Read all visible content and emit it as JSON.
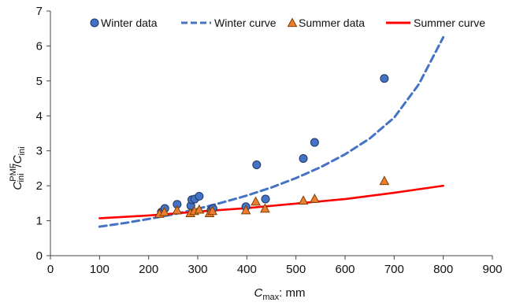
{
  "chart_data": {
    "type": "scatter",
    "title": "",
    "xlabel": {
      "main": "C",
      "sub": "max",
      "suffix": ": mm"
    },
    "ylabel": {
      "numerator_main": "C",
      "numerator_sup": "PMF",
      "numerator_sub": "ini",
      "slash": "/",
      "denominator_main": "C",
      "denominator_sub": "ini"
    },
    "xlim": [
      0,
      900
    ],
    "ylim": [
      0,
      7
    ],
    "xticks": [
      0,
      100,
      200,
      300,
      400,
      500,
      600,
      700,
      800,
      900
    ],
    "yticks": [
      0,
      1,
      2,
      3,
      4,
      5,
      6,
      7
    ],
    "grid": false,
    "legend_position": "top",
    "legend": [
      {
        "label": "Winter data",
        "kind": "marker-circle",
        "color": "#4472C4"
      },
      {
        "label": "Winter curve",
        "kind": "line-dashed",
        "color": "#4472C4"
      },
      {
        "label": "Summer data",
        "kind": "marker-triangle",
        "color": "#ED7D31"
      },
      {
        "label": "Summer curve",
        "kind": "line-solid",
        "color": "#FF0000"
      }
    ],
    "series": [
      {
        "name": "Winter data",
        "kind": "scatter",
        "marker": "circle",
        "color": "#4472C4",
        "points": [
          {
            "x": 226,
            "y": 1.25
          },
          {
            "x": 233,
            "y": 1.35
          },
          {
            "x": 258,
            "y": 1.47
          },
          {
            "x": 286,
            "y": 1.43
          },
          {
            "x": 288,
            "y": 1.6
          },
          {
            "x": 294,
            "y": 1.62
          },
          {
            "x": 303,
            "y": 1.7
          },
          {
            "x": 327,
            "y": 1.3
          },
          {
            "x": 331,
            "y": 1.35
          },
          {
            "x": 398,
            "y": 1.4
          },
          {
            "x": 420,
            "y": 2.6
          },
          {
            "x": 438,
            "y": 1.62
          },
          {
            "x": 515,
            "y": 2.78
          },
          {
            "x": 538,
            "y": 3.24
          },
          {
            "x": 680,
            "y": 5.07
          }
        ]
      },
      {
        "name": "Summer data",
        "kind": "scatter",
        "marker": "triangle",
        "color": "#ED7D31",
        "points": [
          {
            "x": 222,
            "y": 1.2
          },
          {
            "x": 232,
            "y": 1.25
          },
          {
            "x": 258,
            "y": 1.3
          },
          {
            "x": 285,
            "y": 1.22
          },
          {
            "x": 293,
            "y": 1.28
          },
          {
            "x": 303,
            "y": 1.32
          },
          {
            "x": 324,
            "y": 1.22
          },
          {
            "x": 330,
            "y": 1.28
          },
          {
            "x": 398,
            "y": 1.3
          },
          {
            "x": 418,
            "y": 1.55
          },
          {
            "x": 437,
            "y": 1.35
          },
          {
            "x": 515,
            "y": 1.58
          },
          {
            "x": 538,
            "y": 1.63
          },
          {
            "x": 680,
            "y": 2.14
          }
        ]
      },
      {
        "name": "Winter curve",
        "kind": "line",
        "style": "dashed",
        "color": "#4472C4",
        "points": [
          {
            "x": 100,
            "y": 0.83
          },
          {
            "x": 150,
            "y": 0.93
          },
          {
            "x": 200,
            "y": 1.05
          },
          {
            "x": 250,
            "y": 1.18
          },
          {
            "x": 300,
            "y": 1.34
          },
          {
            "x": 350,
            "y": 1.52
          },
          {
            "x": 400,
            "y": 1.72
          },
          {
            "x": 450,
            "y": 1.95
          },
          {
            "x": 500,
            "y": 2.22
          },
          {
            "x": 550,
            "y": 2.53
          },
          {
            "x": 600,
            "y": 2.9
          },
          {
            "x": 650,
            "y": 3.35
          },
          {
            "x": 700,
            "y": 3.95
          },
          {
            "x": 750,
            "y": 4.9
          },
          {
            "x": 800,
            "y": 6.25
          }
        ]
      },
      {
        "name": "Summer curve",
        "kind": "line",
        "style": "solid",
        "color": "#FF0000",
        "points": [
          {
            "x": 100,
            "y": 1.07
          },
          {
            "x": 200,
            "y": 1.15
          },
          {
            "x": 300,
            "y": 1.26
          },
          {
            "x": 400,
            "y": 1.36
          },
          {
            "x": 500,
            "y": 1.49
          },
          {
            "x": 600,
            "y": 1.62
          },
          {
            "x": 700,
            "y": 1.8
          },
          {
            "x": 800,
            "y": 2.0
          }
        ]
      }
    ]
  }
}
